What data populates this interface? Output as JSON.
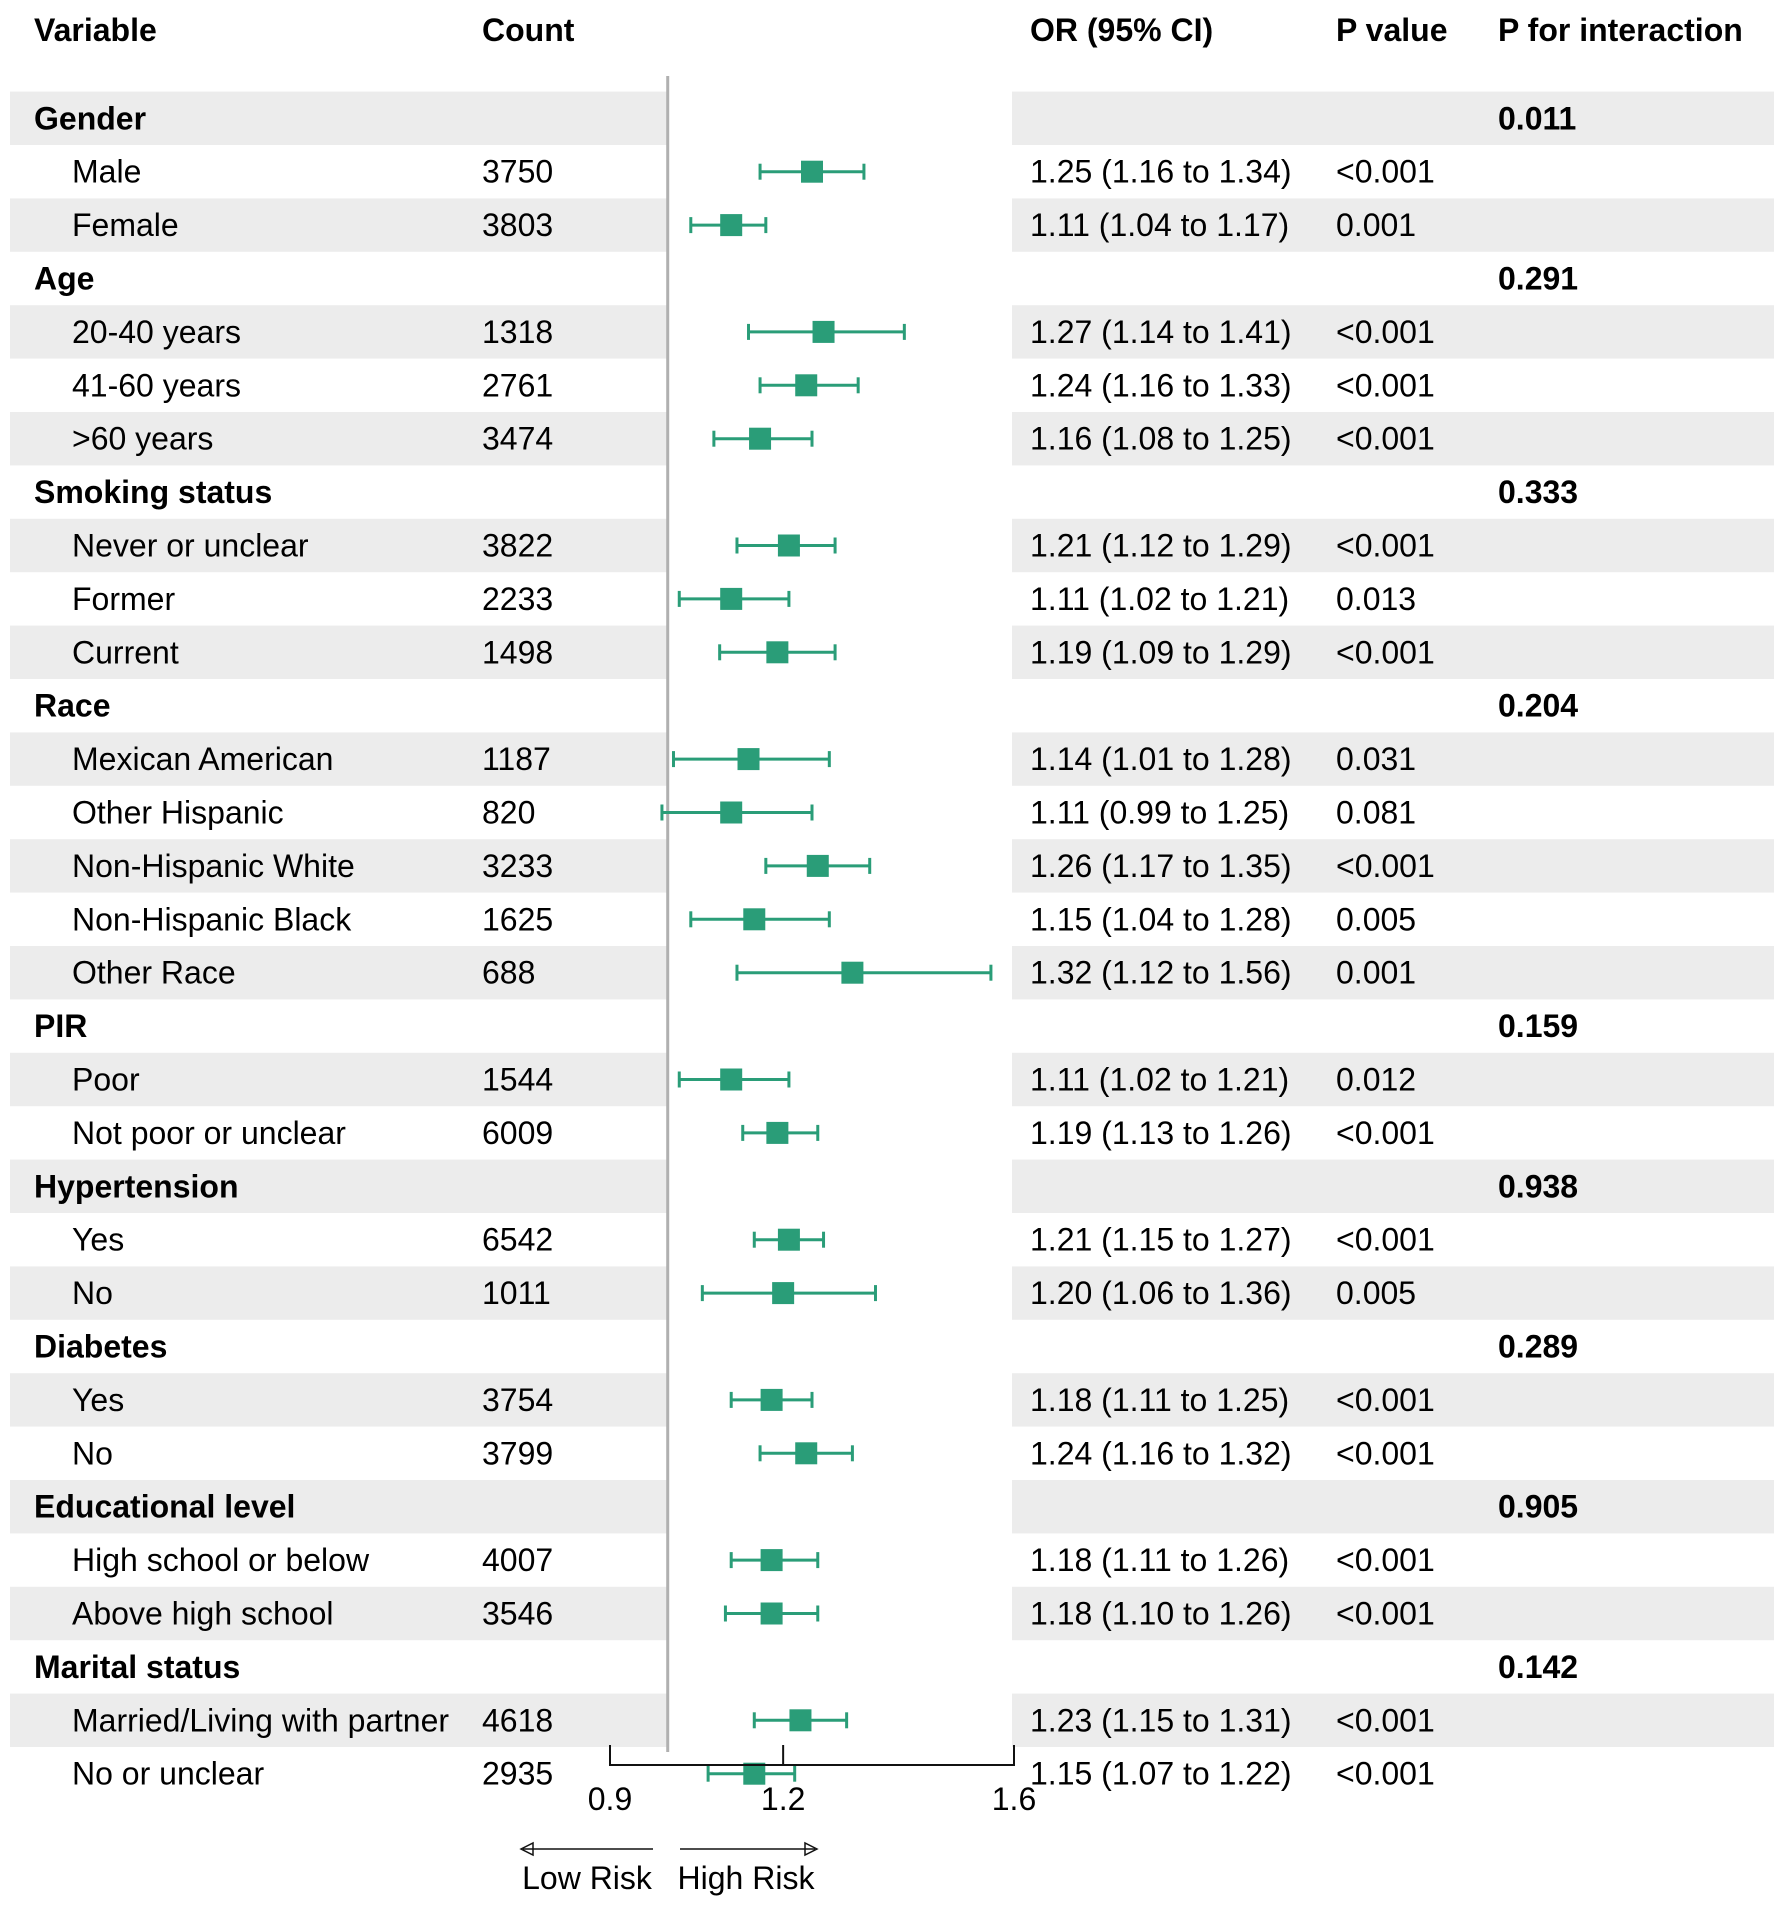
{
  "chart_data": {
    "type": "forest",
    "headers": {
      "variable": "Variable",
      "count": "Count",
      "or": "OR (95% CI)",
      "p_value": "P value",
      "p_interaction": "P for interaction"
    },
    "reference_value": 1.0,
    "xlim": [
      0.9,
      1.6
    ],
    "xticks": [
      0.9,
      1.2,
      1.6
    ],
    "xtick_labels": [
      "0.9",
      "1.2",
      "1.6"
    ],
    "direction_labels": {
      "left": "Low Risk",
      "right": "High Risk"
    },
    "marker_color": "#2a9d78",
    "stripe_color": "#ececec",
    "reference_line_color": "#b0b0b0",
    "rows": [
      {
        "kind": "group",
        "label": "Gender",
        "p_interaction": "0.011"
      },
      {
        "kind": "item",
        "label": "Male",
        "count": "3750",
        "or": 1.25,
        "lo": 1.16,
        "hi": 1.34,
        "or_text": "1.25 (1.16 to 1.34)",
        "p": "<0.001"
      },
      {
        "kind": "item",
        "label": "Female",
        "count": "3803",
        "or": 1.11,
        "lo": 1.04,
        "hi": 1.17,
        "or_text": "1.11 (1.04 to 1.17)",
        "p": "0.001"
      },
      {
        "kind": "group",
        "label": "Age",
        "p_interaction": "0.291"
      },
      {
        "kind": "item",
        "label": "20-40 years",
        "count": "1318",
        "or": 1.27,
        "lo": 1.14,
        "hi": 1.41,
        "or_text": "1.27 (1.14 to 1.41)",
        "p": "<0.001"
      },
      {
        "kind": "item",
        "label": "41-60 years",
        "count": "2761",
        "or": 1.24,
        "lo": 1.16,
        "hi": 1.33,
        "or_text": "1.24 (1.16 to 1.33)",
        "p": "<0.001"
      },
      {
        "kind": "item",
        "label": ">60 years",
        "count": "3474",
        "or": 1.16,
        "lo": 1.08,
        "hi": 1.25,
        "or_text": "1.16 (1.08 to 1.25)",
        "p": "<0.001"
      },
      {
        "kind": "group",
        "label": "Smoking status",
        "p_interaction": "0.333"
      },
      {
        "kind": "item",
        "label": "Never or unclear",
        "count": "3822",
        "or": 1.21,
        "lo": 1.12,
        "hi": 1.29,
        "or_text": "1.21 (1.12 to 1.29)",
        "p": "<0.001"
      },
      {
        "kind": "item",
        "label": "Former",
        "count": "2233",
        "or": 1.11,
        "lo": 1.02,
        "hi": 1.21,
        "or_text": "1.11 (1.02 to 1.21)",
        "p": "0.013"
      },
      {
        "kind": "item",
        "label": "Current",
        "count": "1498",
        "or": 1.19,
        "lo": 1.09,
        "hi": 1.29,
        "or_text": "1.19 (1.09 to 1.29)",
        "p": "<0.001"
      },
      {
        "kind": "group",
        "label": "Race",
        "p_interaction": "0.204"
      },
      {
        "kind": "item",
        "label": "Mexican American",
        "count": "1187",
        "or": 1.14,
        "lo": 1.01,
        "hi": 1.28,
        "or_text": "1.14 (1.01 to 1.28)",
        "p": "0.031"
      },
      {
        "kind": "item",
        "label": "Other Hispanic",
        "count": "820",
        "or": 1.11,
        "lo": 0.99,
        "hi": 1.25,
        "or_text": "1.11 (0.99 to 1.25)",
        "p": "0.081"
      },
      {
        "kind": "item",
        "label": "Non-Hispanic White",
        "count": "3233",
        "or": 1.26,
        "lo": 1.17,
        "hi": 1.35,
        "or_text": "1.26 (1.17 to 1.35)",
        "p": "<0.001"
      },
      {
        "kind": "item",
        "label": "Non-Hispanic Black",
        "count": "1625",
        "or": 1.15,
        "lo": 1.04,
        "hi": 1.28,
        "or_text": "1.15 (1.04 to 1.28)",
        "p": "0.005"
      },
      {
        "kind": "item",
        "label": "Other Race",
        "count": "688",
        "or": 1.32,
        "lo": 1.12,
        "hi": 1.56,
        "or_text": "1.32 (1.12 to 1.56)",
        "p": "0.001"
      },
      {
        "kind": "group",
        "label": "PIR",
        "p_interaction": "0.159"
      },
      {
        "kind": "item",
        "label": "Poor",
        "count": "1544",
        "or": 1.11,
        "lo": 1.02,
        "hi": 1.21,
        "or_text": "1.11 (1.02 to 1.21)",
        "p": "0.012"
      },
      {
        "kind": "item",
        "label": "Not poor or unclear",
        "count": "6009",
        "or": 1.19,
        "lo": 1.13,
        "hi": 1.26,
        "or_text": "1.19 (1.13 to 1.26)",
        "p": "<0.001"
      },
      {
        "kind": "group",
        "label": "Hypertension",
        "p_interaction": "0.938"
      },
      {
        "kind": "item",
        "label": "Yes",
        "count": "6542",
        "or": 1.21,
        "lo": 1.15,
        "hi": 1.27,
        "or_text": "1.21 (1.15 to 1.27)",
        "p": "<0.001"
      },
      {
        "kind": "item",
        "label": "No",
        "count": "1011",
        "or": 1.2,
        "lo": 1.06,
        "hi": 1.36,
        "or_text": "1.20 (1.06 to 1.36)",
        "p": "0.005"
      },
      {
        "kind": "group",
        "label": "Diabetes",
        "p_interaction": "0.289"
      },
      {
        "kind": "item",
        "label": "Yes",
        "count": "3754",
        "or": 1.18,
        "lo": 1.11,
        "hi": 1.25,
        "or_text": "1.18 (1.11 to 1.25)",
        "p": "<0.001"
      },
      {
        "kind": "item",
        "label": "No",
        "count": "3799",
        "or": 1.24,
        "lo": 1.16,
        "hi": 1.32,
        "or_text": "1.24 (1.16 to 1.32)",
        "p": "<0.001"
      },
      {
        "kind": "group",
        "label": "Educational level",
        "p_interaction": "0.905"
      },
      {
        "kind": "item",
        "label": "High school or below",
        "count": "4007",
        "or": 1.18,
        "lo": 1.11,
        "hi": 1.26,
        "or_text": "1.18 (1.11 to 1.26)",
        "p": "<0.001"
      },
      {
        "kind": "item",
        "label": "Above high school",
        "count": "3546",
        "or": 1.18,
        "lo": 1.1,
        "hi": 1.26,
        "or_text": "1.18 (1.10 to 1.26)",
        "p": "<0.001"
      },
      {
        "kind": "group",
        "label": "Marital status",
        "p_interaction": "0.142"
      },
      {
        "kind": "item",
        "label": "Married/Living with partner",
        "count": "4618",
        "or": 1.23,
        "lo": 1.15,
        "hi": 1.31,
        "or_text": "1.23 (1.15 to 1.31)",
        "p": "<0.001"
      },
      {
        "kind": "item",
        "label": "No or unclear",
        "count": "2935",
        "or": 1.15,
        "lo": 1.07,
        "hi": 1.22,
        "or_text": "1.15 (1.07 to 1.22)",
        "p": "<0.001"
      }
    ]
  }
}
